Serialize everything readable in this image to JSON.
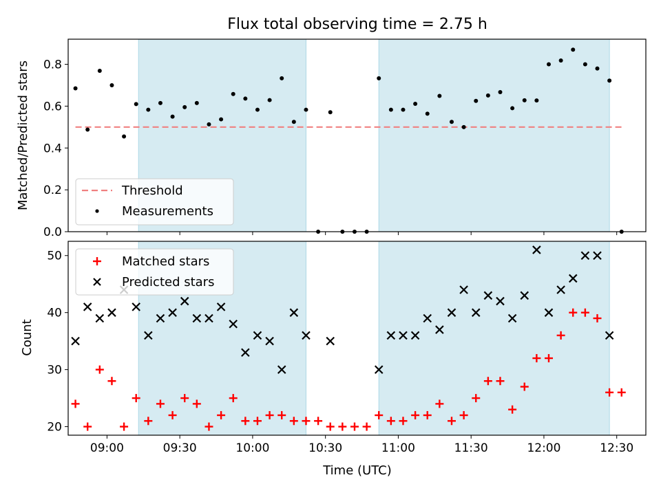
{
  "chart_data": {
    "type": "scatter",
    "title": "Flux total observing time = 2.75 h",
    "xlabel": "Time (UTC)",
    "x_tick_labels": [
      "09:00",
      "09:30",
      "10:00",
      "10:30",
      "11:00",
      "11:30",
      "12:00",
      "12:30"
    ],
    "x_range": [
      "08:44",
      "12:42"
    ],
    "shaded_intervals": [
      [
        "09:13",
        "10:22"
      ],
      [
        "10:52",
        "12:27"
      ]
    ],
    "shade_color": "#add8e6",
    "x": [
      "08:47",
      "08:52",
      "08:57",
      "09:02",
      "09:07",
      "09:12",
      "09:17",
      "09:22",
      "09:27",
      "09:32",
      "09:37",
      "09:42",
      "09:47",
      "09:52",
      "09:57",
      "10:02",
      "10:07",
      "10:12",
      "10:17",
      "10:22",
      "10:27",
      "10:32",
      "10:37",
      "10:42",
      "10:47",
      "10:52",
      "10:57",
      "11:02",
      "11:07",
      "11:12",
      "11:17",
      "11:22",
      "11:27",
      "11:32",
      "11:37",
      "11:42",
      "11:47",
      "11:52",
      "11:57",
      "12:02",
      "12:07",
      "12:12",
      "12:17",
      "12:22",
      "12:27",
      "12:32"
    ],
    "panels": [
      {
        "ylabel": "Matched/Predicted stars",
        "ylim": [
          0,
          0.92
        ],
        "y_tick_labels": [
          "0.0",
          "0.2",
          "0.4",
          "0.6",
          "0.8"
        ],
        "legend_position": "lower-left",
        "threshold": 0.5,
        "series": [
          {
            "name": "Threshold",
            "color": "#f08080",
            "style": "dashed-line"
          },
          {
            "name": "Measurements",
            "color": "#000000",
            "marker": "dot",
            "values": [
              0.685,
              0.488,
              0.769,
              0.7,
              0.455,
              0.61,
              0.583,
              0.615,
              0.55,
              0.595,
              0.615,
              0.513,
              0.537,
              0.658,
              0.636,
              0.583,
              0.629,
              0.733,
              0.525,
              0.583,
              0.0,
              0.571,
              0.0,
              0.0,
              0.0,
              0.733,
              0.583,
              0.583,
              0.611,
              0.564,
              0.649,
              0.525,
              0.5,
              0.625,
              0.651,
              0.667,
              0.59,
              0.628,
              0.627,
              0.8,
              0.818,
              0.87,
              0.8,
              0.78,
              0.722,
              0.0
            ]
          }
        ]
      },
      {
        "ylabel": "Count",
        "ylim": [
          18.5,
          52.5
        ],
        "y_tick_labels": [
          "20",
          "30",
          "40",
          "50"
        ],
        "legend_position": "upper-left",
        "series": [
          {
            "name": "Matched stars",
            "color": "#ff0000",
            "marker": "plus",
            "values": [
              24,
              20,
              30,
              28,
              20,
              25,
              21,
              24,
              22,
              25,
              24,
              20,
              22,
              25,
              21,
              21,
              22,
              22,
              21,
              21,
              21,
              20,
              20,
              20,
              20,
              22,
              21,
              21,
              22,
              22,
              24,
              21,
              22,
              25,
              28,
              28,
              23,
              27,
              32,
              32,
              36,
              40,
              40,
              39,
              26,
              26
            ]
          },
          {
            "name": "Predicted stars",
            "color": "#000000",
            "marker": "x",
            "values": [
              35,
              41,
              39,
              40,
              44,
              41,
              36,
              39,
              40,
              42,
              39,
              39,
              41,
              38,
              33,
              36,
              35,
              30,
              40,
              36,
              null,
              35,
              null,
              null,
              null,
              30,
              36,
              36,
              36,
              39,
              37,
              40,
              44,
              40,
              43,
              42,
              39,
              43,
              51,
              40,
              44,
              46,
              50,
              50,
              36,
              null
            ]
          }
        ]
      }
    ]
  }
}
